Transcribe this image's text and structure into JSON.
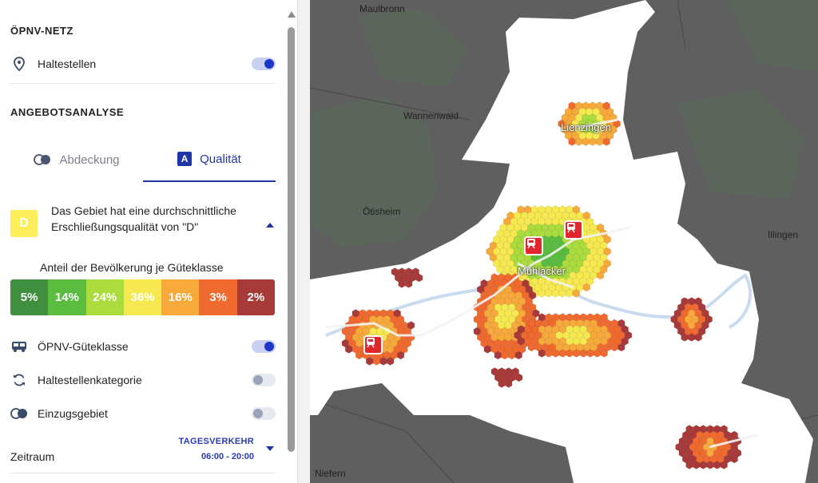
{
  "sidebar": {
    "network_title": "ÖPNV-NETZ",
    "haltestellen": {
      "label": "Haltestellen",
      "on": true
    },
    "analysis_title": "ANGEBOTSANALYSE",
    "tabs": [
      {
        "label": "Abdeckung",
        "active": false,
        "icon": "coverage-icon"
      },
      {
        "label": "Qualität",
        "active": true,
        "icon": "a-grade-icon",
        "icon_text": "A"
      }
    ],
    "grade": {
      "letter": "D",
      "text": "Das Gebiet hat eine durchschnittliche Erschließungsqualität von \"D\"",
      "color": "#fbee5a"
    },
    "share_title": "Anteil der Bevölkerung je Güteklasse",
    "shares": [
      {
        "label": "5%",
        "value": 5,
        "color": "#3f8f3f"
      },
      {
        "label": "14%",
        "value": 14,
        "color": "#5bbd40"
      },
      {
        "label": "24%",
        "value": 24,
        "color": "#a9dc3c"
      },
      {
        "label": "36%",
        "value": 36,
        "color": "#f6e94f"
      },
      {
        "label": "16%",
        "value": 16,
        "color": "#f7a93a"
      },
      {
        "label": "3%",
        "value": 3,
        "color": "#f06a30"
      },
      {
        "label": "2%",
        "value": 2,
        "color": "#a83a3a"
      }
    ],
    "layers": [
      {
        "label": "ÖPNV-Güteklasse",
        "icon": "bus-icon",
        "on": true
      },
      {
        "label": "Haltestellenkategorie",
        "icon": "refresh-icon",
        "on": false
      },
      {
        "label": "Einzugsgebiet",
        "icon": "coverage-icon",
        "on": false
      }
    ],
    "zeitraum": {
      "label": "Zeitraum",
      "mode": "TAGESVERKEHR",
      "time": "06:00 - 20:00"
    }
  },
  "map": {
    "towns": [
      {
        "name": "Maulbronn"
      },
      {
        "name": "Wannenwald"
      },
      {
        "name": "Lienzingen"
      },
      {
        "name": "Ötisheim"
      },
      {
        "name": "Illingen"
      },
      {
        "name": "Mühlacker"
      },
      {
        "name": "Niefern"
      }
    ],
    "station_icon": "train-station-icon"
  }
}
